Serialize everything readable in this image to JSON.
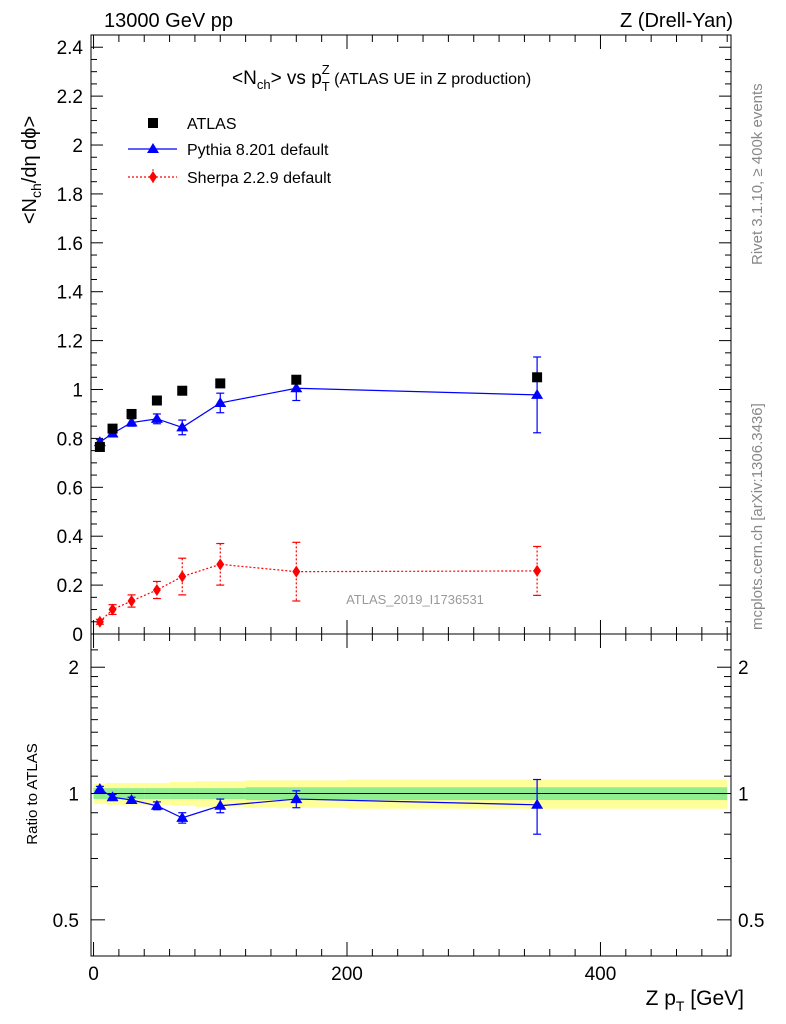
{
  "header": {
    "left": "13000 GeV pp",
    "right": "Z (Drell-Yan)"
  },
  "side_labels": {
    "rivet": "Rivet 3.1.10, ≥ 400k events",
    "mcplots": "mcplots.cern.ch [arXiv:1306.3436]"
  },
  "title": {
    "prefix": "<N",
    "sub1": "ch",
    "mid": "> vs p",
    "sup": "Z",
    "sub2": "T",
    "suffix": " (ATLAS UE in Z production)"
  },
  "watermark": "ATLAS_2019_I1736531",
  "ylabel_main": {
    "a": "<N",
    "sub": "ch",
    "b": "/dη dϕ>"
  },
  "ylabel_ratio": "Ratio to ATLAS",
  "xlabel": {
    "a": "Z p",
    "sub": "T",
    "b": " [GeV]"
  },
  "colors": {
    "atlas": "#000000",
    "pythia": "#0000ff",
    "sherpa": "#ff0000",
    "band_inner": "#90ee90",
    "band_outer": "#ffff99"
  },
  "chart_data": [
    {
      "type": "scatter",
      "panel": "main",
      "xlim": [
        -2,
        503
      ],
      "ylim": [
        0,
        2.45
      ],
      "yticks": [
        "0",
        "0.2",
        "0.4",
        "0.6",
        "0.8",
        "1",
        "1.2",
        "1.4",
        "1.6",
        "1.8",
        "2",
        "2.2",
        "2.4"
      ],
      "legend_position": "top-left",
      "series": [
        {
          "name": "ATLAS",
          "marker": "square",
          "x": [
            5,
            15,
            30,
            50,
            70,
            100,
            160,
            350
          ],
          "y": [
            0.765,
            0.84,
            0.9,
            0.955,
            0.995,
            1.025,
            1.04,
            1.05
          ]
        },
        {
          "name": "Pythia 8.201 default",
          "marker": "triangle",
          "line": "solid",
          "x": [
            5,
            15,
            30,
            50,
            70,
            100,
            160,
            350
          ],
          "y": [
            0.785,
            0.82,
            0.865,
            0.88,
            0.845,
            0.945,
            1.005,
            0.978
          ],
          "err": [
            0.01,
            0.01,
            0.015,
            0.02,
            0.03,
            0.04,
            0.05,
            0.155
          ]
        },
        {
          "name": "Sherpa 2.2.9 default",
          "marker": "diamond",
          "line": "dotted",
          "x": [
            5,
            15,
            30,
            50,
            70,
            100,
            160,
            350
          ],
          "y": [
            0.05,
            0.1,
            0.135,
            0.18,
            0.235,
            0.285,
            0.255,
            0.258
          ],
          "err": [
            0.01,
            0.02,
            0.025,
            0.035,
            0.075,
            0.085,
            0.12,
            0.1
          ]
        }
      ]
    },
    {
      "type": "line",
      "panel": "ratio",
      "xlim": [
        -2,
        503
      ],
      "ylim": [
        0.41,
        2.4
      ],
      "scale": "log",
      "xticks": [
        "0",
        "200",
        "400"
      ],
      "yticks": [
        "0.5",
        "1",
        "2"
      ],
      "series": [
        {
          "name": "Pythia 8.201 default",
          "x": [
            5,
            15,
            30,
            50,
            70,
            100,
            160,
            350
          ],
          "y": [
            1.025,
            0.98,
            0.965,
            0.935,
            0.875,
            0.935,
            0.97,
            0.94
          ],
          "err": [
            0.015,
            0.015,
            0.015,
            0.02,
            0.025,
            0.035,
            0.045,
            0.14
          ]
        }
      ],
      "band_inner": {
        "x_edges": [
          0,
          10,
          20,
          40,
          60,
          80,
          120,
          200,
          500
        ],
        "half_width": [
          0.03,
          0.03,
          0.03,
          0.03,
          0.03,
          0.03,
          0.035,
          0.035
        ]
      },
      "band_outer": {
        "x_edges": [
          0,
          10,
          20,
          40,
          60,
          80,
          120,
          200,
          500
        ],
        "half_width": [
          0.055,
          0.06,
          0.06,
          0.06,
          0.065,
          0.07,
          0.075,
          0.08
        ]
      }
    }
  ]
}
